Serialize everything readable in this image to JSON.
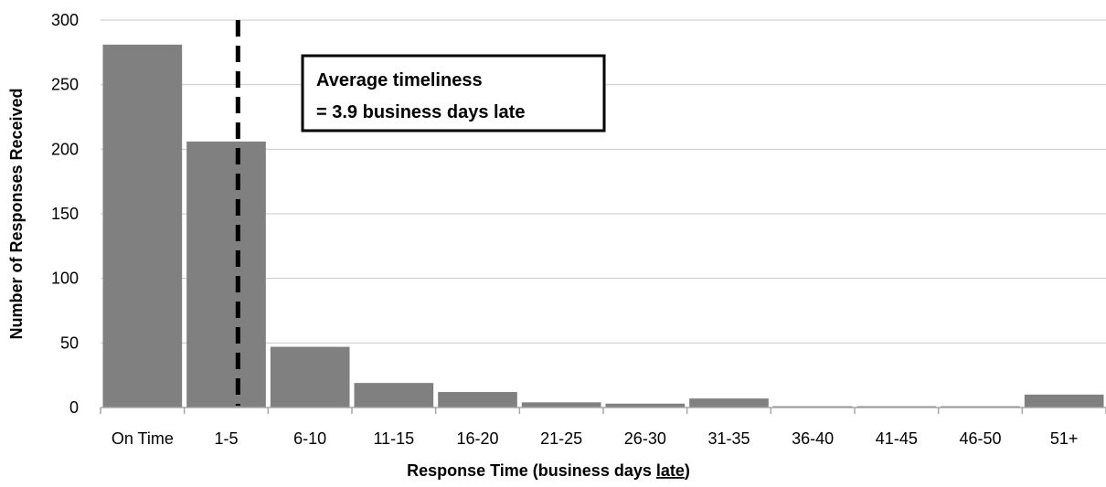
{
  "chart_data": {
    "type": "bar",
    "categories": [
      "On Time",
      "1-5",
      "6-10",
      "11-15",
      "16-20",
      "21-25",
      "26-30",
      "31-35",
      "36-40",
      "41-45",
      "46-50",
      "51+"
    ],
    "values": [
      281,
      206,
      47,
      19,
      12,
      4,
      3,
      7,
      1,
      1,
      1,
      10
    ],
    "ylabel": "Number of Responses Received",
    "xlabel": {
      "prefix": "Response Time (business days ",
      "underlined": "late",
      "suffix": ")"
    },
    "ylim": [
      0,
      300
    ],
    "yticks": [
      0,
      50,
      100,
      150,
      200,
      250,
      300
    ],
    "grid": "horizontal",
    "legend": "none",
    "reference_line": {
      "style": "dashed",
      "position": "within 1-5 category"
    },
    "annotation": {
      "line1": "Average timeliness",
      "line2": "= 3.9 business days late"
    }
  },
  "colors": {
    "bar": "#808080",
    "grid": "#c8c8c8",
    "axis": "#a6a6a6",
    "reference_line": "#000000",
    "text": "#000000"
  }
}
